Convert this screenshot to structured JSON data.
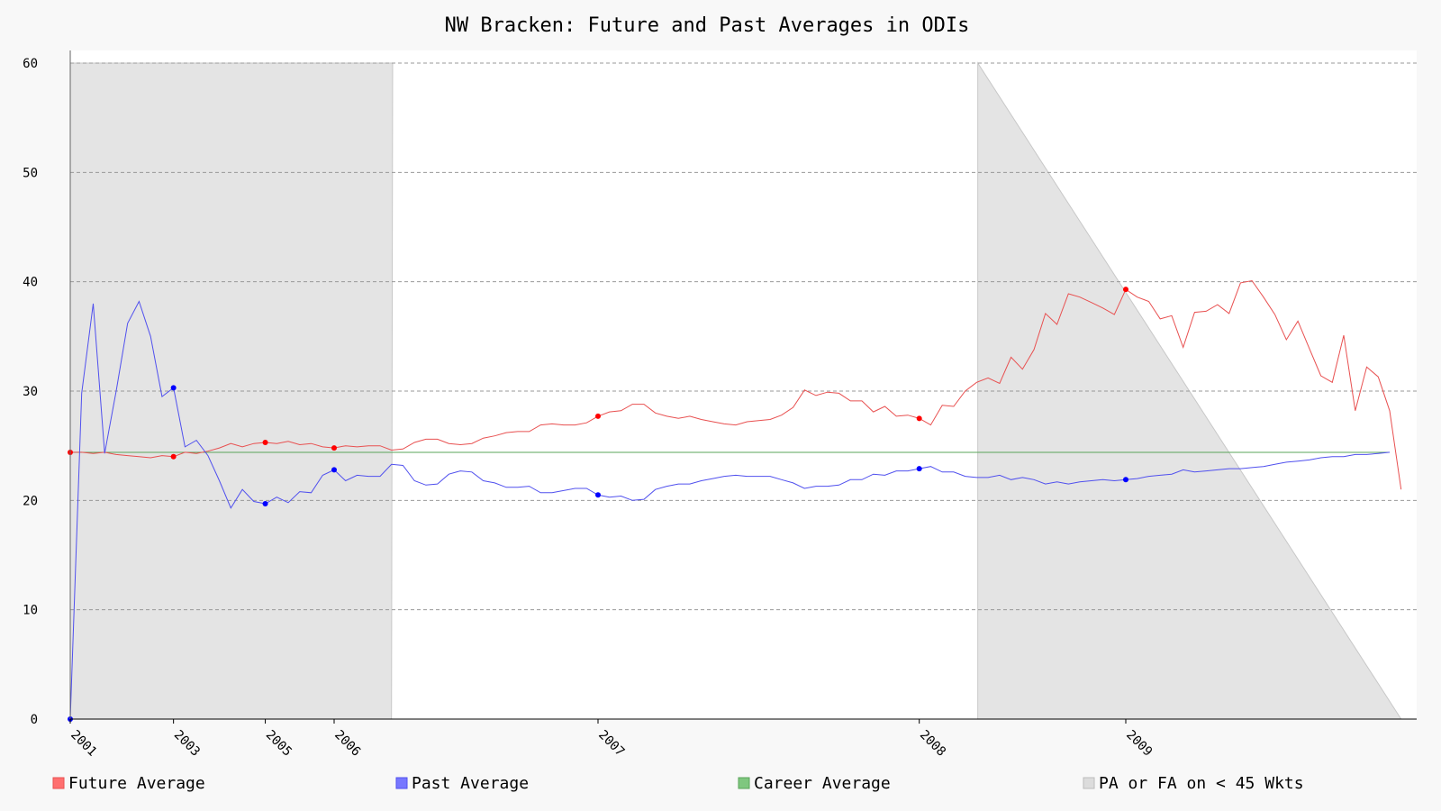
{
  "chart_data": {
    "type": "line",
    "title": "NW Bracken: Future and Past Averages in ODIs",
    "xlabel": "",
    "ylabel": "",
    "ylim": [
      0,
      60
    ],
    "yticks": [
      0,
      10,
      20,
      30,
      40,
      50,
      60
    ],
    "x_tick_labels": [
      {
        "label": "2001",
        "index": 0
      },
      {
        "label": "2003",
        "index": 9
      },
      {
        "label": "2005",
        "index": 17
      },
      {
        "label": "2006",
        "index": 23
      },
      {
        "label": "2007",
        "index": 46
      },
      {
        "label": "2008",
        "index": 74
      },
      {
        "label": "2009",
        "index": 92
      }
    ],
    "n_points": 116,
    "grid": true,
    "legend_placement": "bottom",
    "legend": [
      {
        "label": "Future Average",
        "color": "#ff6f6f"
      },
      {
        "label": "Past Average",
        "color": "#7777ff"
      },
      {
        "label": "Career Average",
        "color": "#7fc77f"
      },
      {
        "label": "PA or FA on < 45 Wkts",
        "color": "#dcdcdc"
      }
    ],
    "colors": {
      "future": "#e85050",
      "past": "#5050ee",
      "career": "#5aa55a",
      "shade": "#e4e4e4",
      "marker_future": "#ff0000",
      "marker_past": "#0000ff"
    },
    "career_average": 24.4,
    "shaded_regions": [
      {
        "from_index": 0,
        "to_index": 28,
        "top_to_index": 28.1
      },
      {
        "from_index": 79.1,
        "to_index": 116,
        "top_to_index": 79.1
      }
    ],
    "series": [
      {
        "name": "Future Average",
        "values": [
          24.4,
          24.4,
          24.3,
          24.4,
          24.2,
          24.1,
          24.0,
          23.9,
          24.1,
          24.0,
          24.4,
          24.3,
          24.5,
          24.8,
          25.2,
          24.9,
          25.2,
          25.3,
          25.2,
          25.4,
          25.1,
          25.2,
          24.9,
          24.8,
          25.0,
          24.9,
          25.0,
          25.0,
          24.6,
          24.7,
          25.3,
          25.6,
          25.6,
          25.2,
          25.1,
          25.2,
          25.7,
          25.9,
          26.2,
          26.3,
          26.3,
          26.9,
          27.0,
          26.9,
          26.9,
          27.1,
          27.7,
          28.1,
          28.2,
          28.8,
          28.8,
          28.0,
          27.7,
          27.5,
          27.7,
          27.4,
          27.2,
          27.0,
          26.9,
          27.2,
          27.3,
          27.4,
          27.8,
          28.5,
          30.1,
          29.6,
          29.9,
          29.8,
          29.1,
          29.1,
          28.1,
          28.6,
          27.7,
          27.8,
          27.5,
          26.9,
          28.7,
          28.6,
          30.0,
          30.8,
          31.2,
          30.7,
          33.1,
          32.0,
          33.8,
          37.1,
          36.1,
          38.9,
          38.6,
          38.1,
          37.6,
          37.0,
          39.3,
          38.6,
          38.2,
          36.6,
          36.9,
          34.0,
          37.2,
          37.3,
          37.9,
          37.1,
          39.9,
          40.1,
          38.6,
          37.0,
          34.7,
          36.4,
          33.9,
          31.4,
          30.8,
          35.1,
          28.2,
          32.2,
          31.3,
          28.2,
          21.0
        ]
      },
      {
        "name": "Past Average",
        "values": [
          0.0,
          29.8,
          38.0,
          24.3,
          30.0,
          36.2,
          38.2,
          35.0,
          29.5,
          30.3,
          24.9,
          25.5,
          24.1,
          21.8,
          19.3,
          21.0,
          19.9,
          19.7,
          20.3,
          19.8,
          20.8,
          20.7,
          22.3,
          22.8,
          21.8,
          22.3,
          22.2,
          22.2,
          23.3,
          23.2,
          21.8,
          21.4,
          21.5,
          22.4,
          22.7,
          22.6,
          21.8,
          21.6,
          21.2,
          21.2,
          21.3,
          20.7,
          20.7,
          20.9,
          21.1,
          21.1,
          20.5,
          20.3,
          20.4,
          20.0,
          20.1,
          21.0,
          21.3,
          21.5,
          21.5,
          21.8,
          22.0,
          22.2,
          22.3,
          22.2,
          22.2,
          22.2,
          21.9,
          21.6,
          21.1,
          21.3,
          21.3,
          21.4,
          21.9,
          21.9,
          22.4,
          22.3,
          22.7,
          22.7,
          22.9,
          23.1,
          22.6,
          22.6,
          22.2,
          22.1,
          22.1,
          22.3,
          21.9,
          22.1,
          21.9,
          21.5,
          21.7,
          21.5,
          21.7,
          21.8,
          21.9,
          21.8,
          21.9,
          22.0,
          22.2,
          22.3,
          22.4,
          22.8,
          22.6,
          22.7,
          22.8,
          22.9,
          22.9,
          23.0,
          23.1,
          23.3,
          23.5,
          23.6,
          23.7,
          23.9,
          24.0,
          24.0,
          24.2,
          24.2,
          24.3,
          24.4
        ]
      }
    ],
    "markers": {
      "future": [
        0,
        9,
        17,
        23,
        46,
        74,
        92
      ],
      "past": [
        0,
        9,
        17,
        23,
        46,
        74,
        92
      ]
    }
  }
}
